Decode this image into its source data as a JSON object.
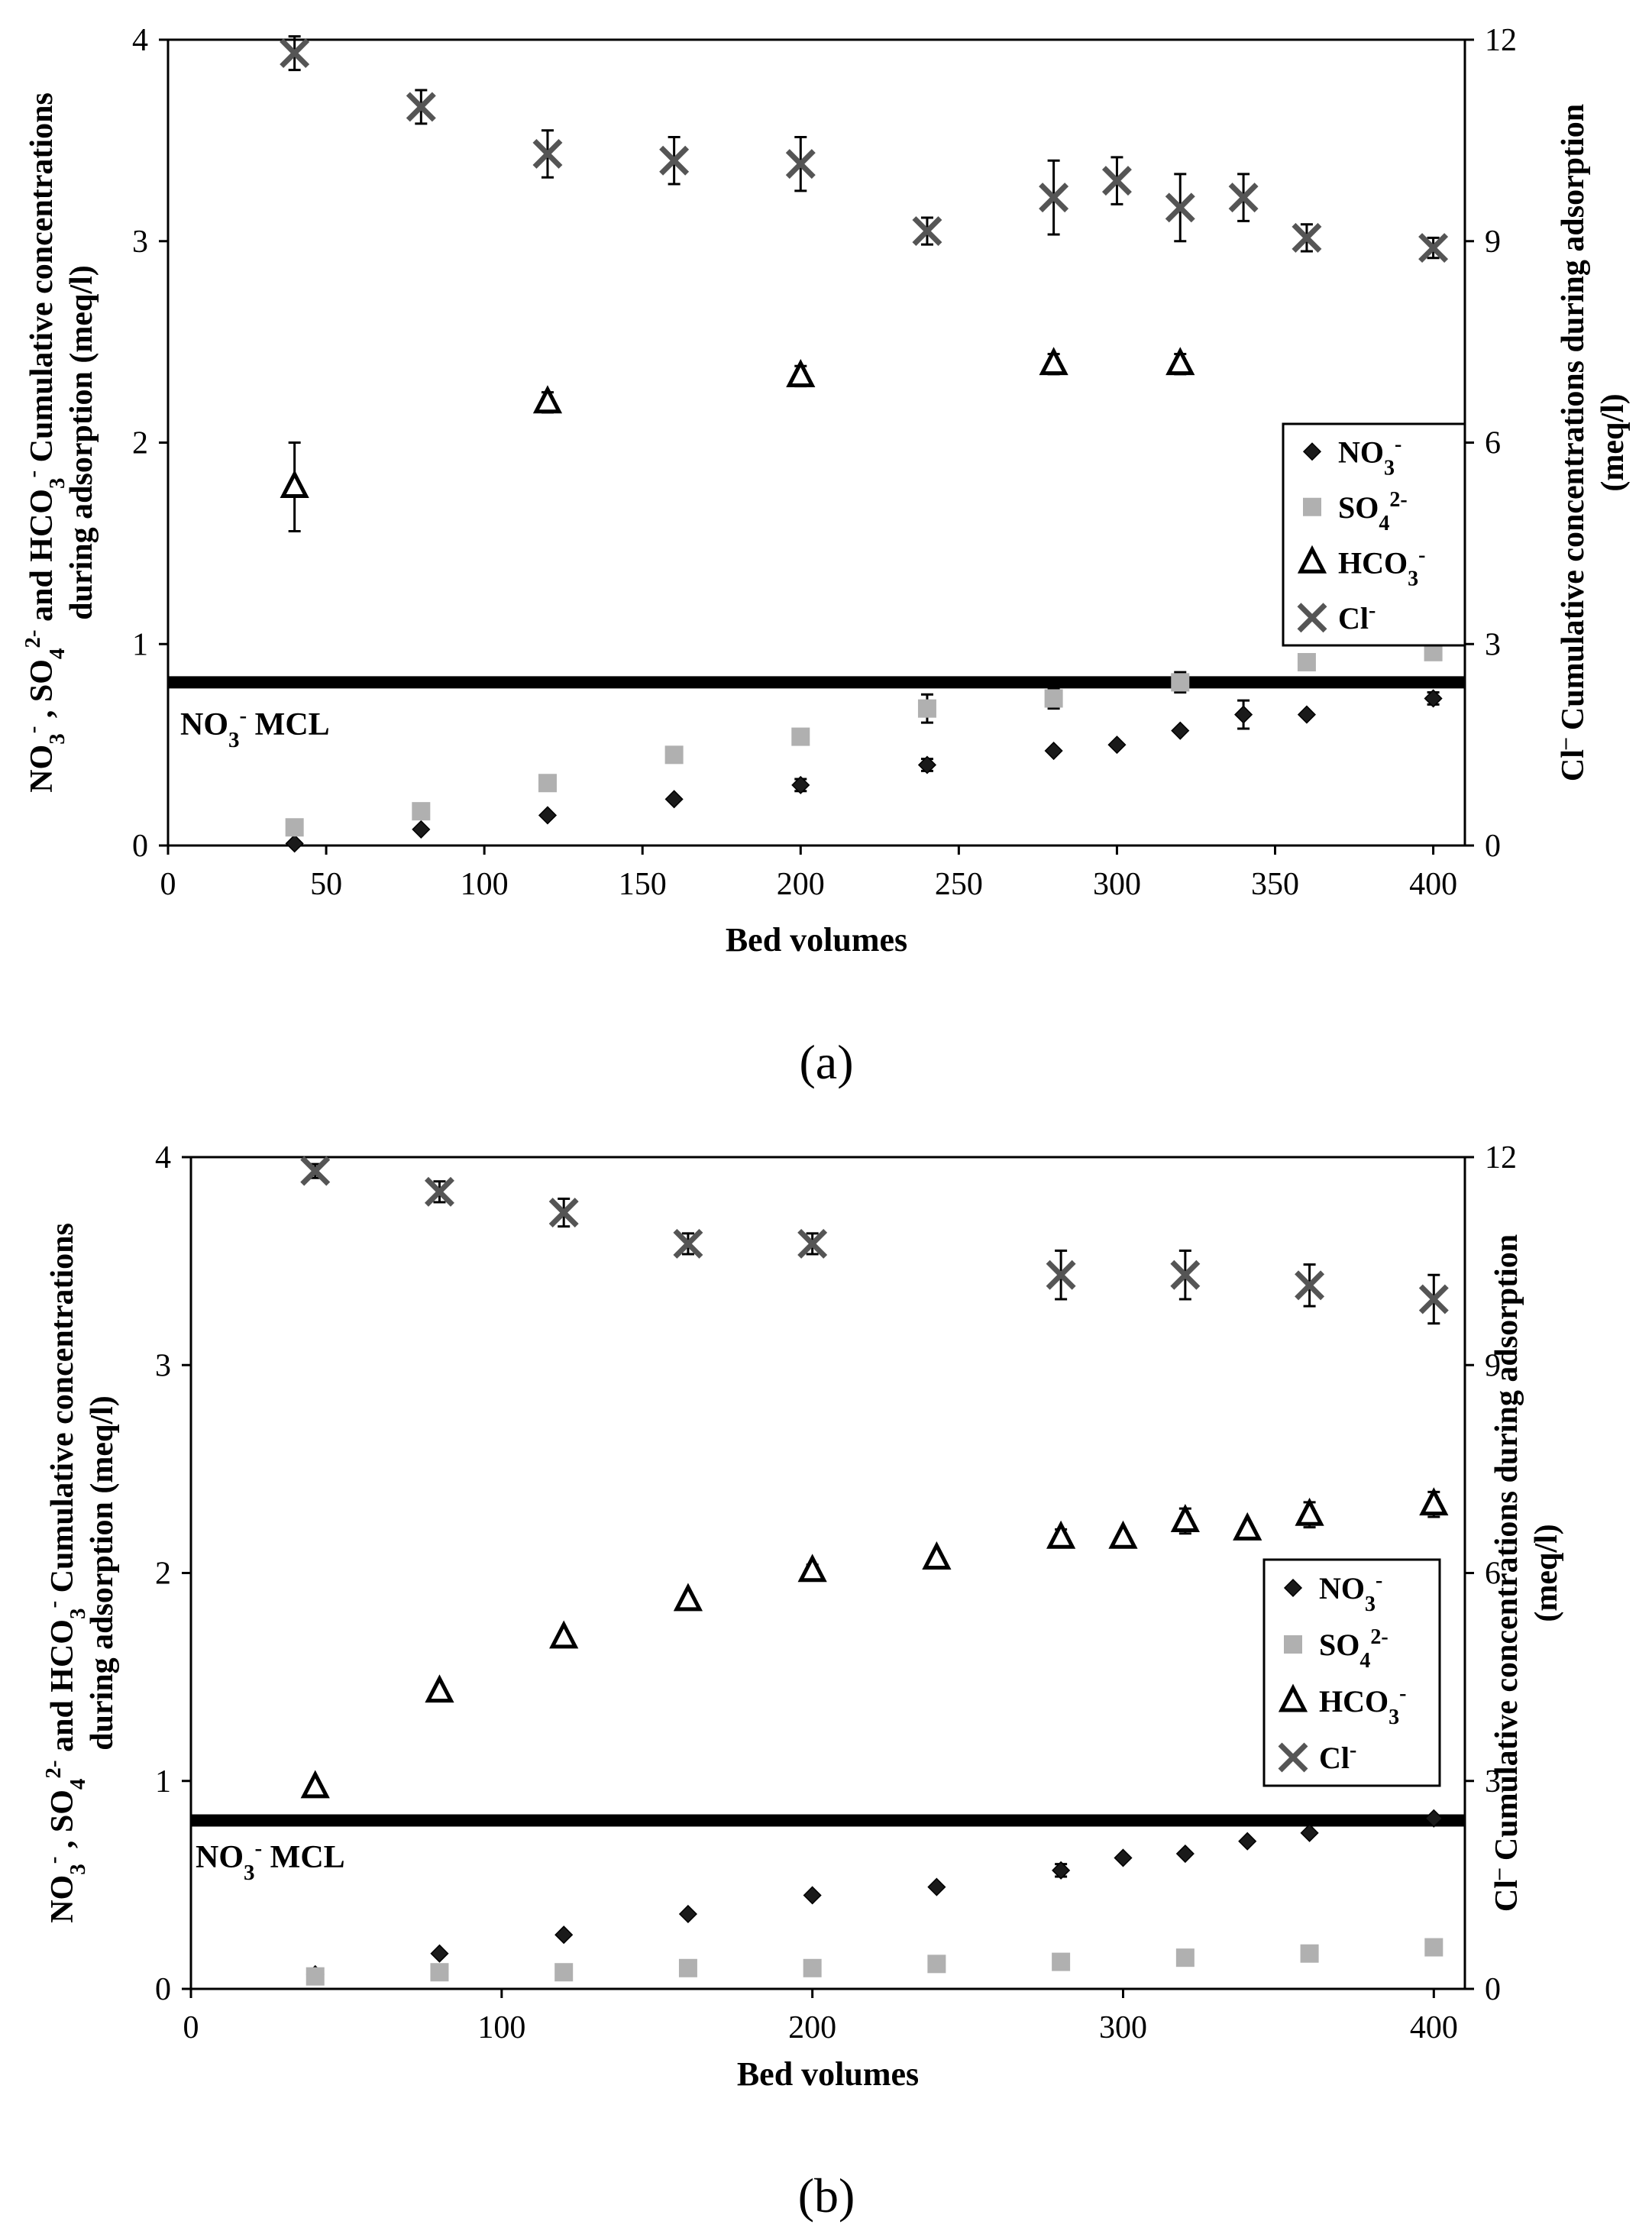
{
  "panel_labels": [
    "(a)",
    "(b)"
  ],
  "legend": {
    "no3": {
      "base": "NO",
      "sub": "3",
      "sup": "-"
    },
    "so4": {
      "base": "SO",
      "sub": "4",
      "sup": "2-"
    },
    "hco3": {
      "base": "HCO",
      "sub": "3",
      "sup": "-"
    },
    "cl": {
      "base": "Cl",
      "sup": "-"
    }
  },
  "mcl_label": {
    "base": "NO",
    "sub": "3",
    "sup": "-",
    "rest": "MCL"
  },
  "ylabel_left": {
    "line1": [
      {
        "t": "NO"
      },
      {
        "t": "3",
        "pos": "sub"
      },
      {
        "t": "-",
        "pos": "sup"
      },
      {
        "t": " , SO"
      },
      {
        "t": "4",
        "pos": "sub"
      },
      {
        "t": "2-",
        "pos": "sup"
      },
      {
        "t": " and HCO"
      },
      {
        "t": "3",
        "pos": "sub"
      },
      {
        "t": "-",
        "pos": "sup"
      },
      {
        "t": " Cumulative concentrations"
      }
    ],
    "line2": "during adsorption (meq/l)"
  },
  "ylabel_right": {
    "line1": [
      {
        "t": "Cl"
      },
      {
        "t": "–",
        "pos": "sup"
      },
      {
        "t": " Cumulative concentrations during adsorption"
      }
    ],
    "line2": "(meq/l)"
  },
  "colors": {
    "no3": "#1a1a1a",
    "so4": "#b0b0b0",
    "hco3": "#000000",
    "cl": "#555555",
    "mcl": "#000000"
  },
  "chart_data": [
    {
      "type": "scatter",
      "panel": "(a)",
      "xlabel": "Bed volumes",
      "xlim": [
        0,
        410
      ],
      "xticks": [
        0,
        50,
        100,
        150,
        200,
        250,
        300,
        350,
        400
      ],
      "ylim_left": [
        0,
        4
      ],
      "yticks_left": [
        0,
        1,
        2,
        3,
        4
      ],
      "ylim_right": [
        0,
        12
      ],
      "yticks_right": [
        0,
        3,
        6,
        9,
        12
      ],
      "mcl_value": 0.81,
      "series": [
        {
          "name": "NO3-",
          "axis": "left",
          "x": [
            40,
            80,
            120,
            160,
            200,
            240,
            280,
            300,
            320,
            340,
            360,
            400
          ],
          "values": [
            0.01,
            0.08,
            0.15,
            0.23,
            0.3,
            0.4,
            0.47,
            0.5,
            0.57,
            0.65,
            0.65,
            0.73
          ],
          "err": [
            0,
            0,
            0,
            0,
            0.03,
            0.03,
            0,
            0,
            0,
            0.07,
            0,
            0.03
          ]
        },
        {
          "name": "SO42-",
          "axis": "left",
          "x": [
            40,
            80,
            120,
            160,
            200,
            240,
            280,
            320,
            360,
            400
          ],
          "values": [
            0.09,
            0.17,
            0.31,
            0.45,
            0.54,
            0.68,
            0.73,
            0.81,
            0.91,
            0.96
          ],
          "err": [
            0,
            0,
            0,
            0,
            0,
            0.07,
            0.05,
            0.05,
            0,
            0
          ]
        },
        {
          "name": "HCO3-",
          "axis": "left",
          "x": [
            40,
            120,
            200,
            280,
            320
          ],
          "values": [
            1.78,
            2.2,
            2.33,
            2.39,
            2.39
          ],
          "err": [
            0.22,
            0.05,
            0.05,
            0.05,
            0.05
          ]
        },
        {
          "name": "Cl-",
          "axis": "right",
          "x": [
            40,
            80,
            120,
            160,
            200,
            240,
            280,
            300,
            320,
            340,
            360,
            400
          ],
          "values": [
            11.8,
            11.0,
            10.3,
            10.2,
            10.15,
            9.15,
            9.65,
            9.9,
            9.5,
            9.65,
            9.05,
            8.9
          ],
          "err": [
            0.25,
            0.25,
            0.35,
            0.35,
            0.4,
            0.2,
            0.55,
            0.35,
            0.5,
            0.35,
            0.2,
            0.15
          ]
        }
      ]
    },
    {
      "type": "scatter",
      "panel": "(b)",
      "xlabel": "Bed volumes",
      "xlim": [
        0,
        410
      ],
      "xticks": [
        0,
        100,
        200,
        300,
        400
      ],
      "ylim_left": [
        0,
        4
      ],
      "yticks_left": [
        0,
        1,
        2,
        3,
        4
      ],
      "ylim_right": [
        0,
        12
      ],
      "yticks_right": [
        0,
        3,
        6,
        9,
        12
      ],
      "mcl_value": 0.81,
      "series": [
        {
          "name": "NO3-",
          "axis": "left",
          "x": [
            40,
            80,
            120,
            160,
            200,
            240,
            280,
            300,
            320,
            340,
            360,
            400
          ],
          "values": [
            0.07,
            0.17,
            0.26,
            0.36,
            0.45,
            0.49,
            0.57,
            0.63,
            0.65,
            0.71,
            0.75,
            0.82
          ],
          "err": [
            0,
            0,
            0,
            0,
            0,
            0,
            0.03,
            0,
            0,
            0,
            0,
            0
          ]
        },
        {
          "name": "SO42-",
          "axis": "left",
          "x": [
            40,
            80,
            120,
            160,
            200,
            240,
            280,
            320,
            360,
            400
          ],
          "values": [
            0.06,
            0.08,
            0.08,
            0.1,
            0.1,
            0.12,
            0.13,
            0.15,
            0.17,
            0.2
          ],
          "err": [
            0,
            0,
            0,
            0,
            0,
            0.02,
            0.02,
            0.03,
            0.03,
            0.03
          ]
        },
        {
          "name": "HCO3-",
          "axis": "left",
          "x": [
            40,
            80,
            120,
            160,
            200,
            240,
            280,
            300,
            320,
            340,
            360,
            400
          ],
          "values": [
            0.97,
            1.43,
            1.69,
            1.87,
            2.01,
            2.07,
            2.17,
            2.17,
            2.25,
            2.21,
            2.28,
            2.33
          ],
          "err": [
            0,
            0,
            0,
            0,
            0.03,
            0,
            0.04,
            0,
            0.06,
            0,
            0.06,
            0.06
          ]
        },
        {
          "name": "Cl-",
          "axis": "right",
          "x": [
            40,
            80,
            120,
            160,
            200,
            280,
            320,
            360,
            400
          ],
          "values": [
            11.8,
            11.5,
            11.2,
            10.75,
            10.75,
            10.3,
            10.3,
            10.15,
            9.95
          ],
          "err": [
            0.1,
            0.15,
            0.2,
            0.15,
            0.15,
            0.35,
            0.35,
            0.3,
            0.35
          ]
        }
      ]
    }
  ]
}
